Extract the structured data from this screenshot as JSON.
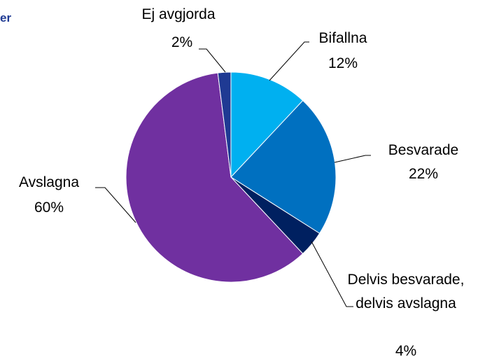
{
  "chart_data": {
    "type": "pie",
    "title": "er",
    "categories": [
      "Bifallna",
      "Besvarade",
      "Delvis besvarade, delvis avslagna",
      "Avslagna",
      "Ej avgjorda"
    ],
    "values": [
      12,
      22,
      4,
      60,
      2
    ],
    "value_labels": [
      "12%",
      "22%",
      "4%",
      "60%",
      "2%"
    ],
    "colors": [
      "#00b0f0",
      "#0070c0",
      "#002060",
      "#7030a0",
      "#1f3a93"
    ]
  }
}
